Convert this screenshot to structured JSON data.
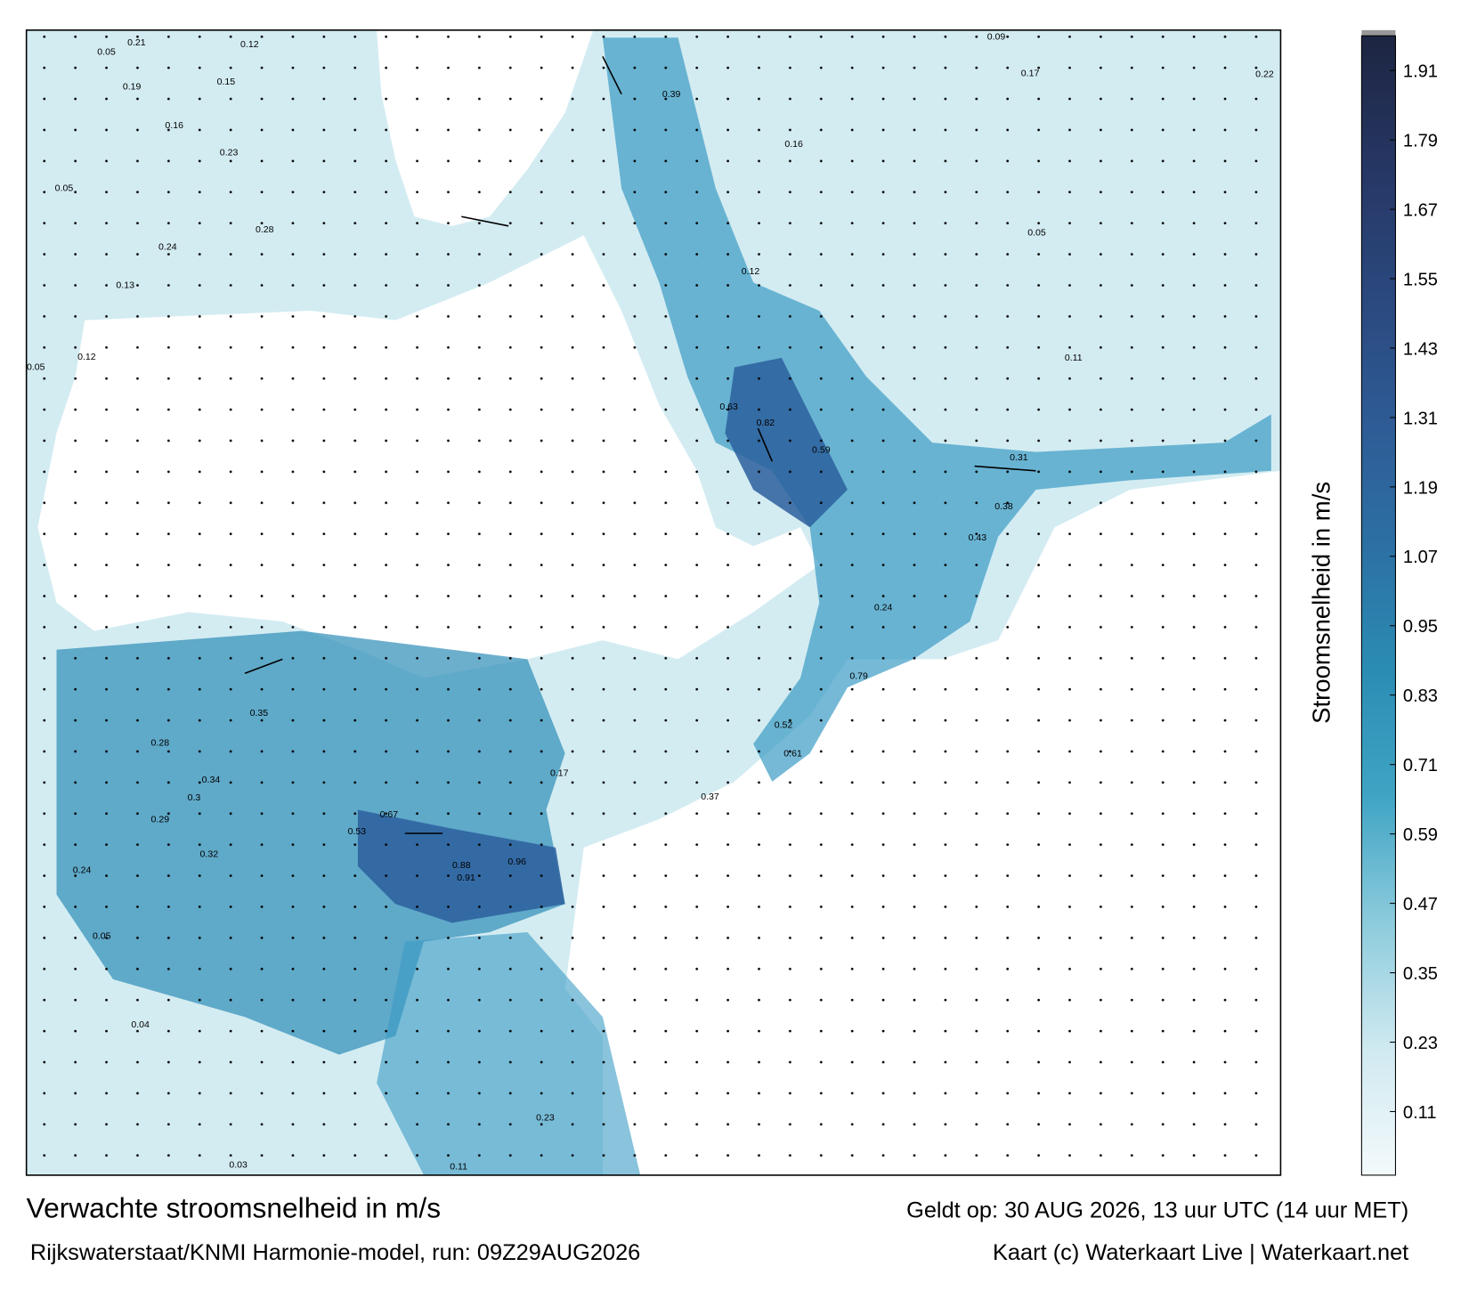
{
  "title": "Verwachte stroomsnelheid in m/s",
  "source": "Rijkswaterstaat/KNMI Harmonie-model, run: 09Z29AUG2026",
  "valid": "Geldt op: 30 AUG 2026, 13 uur UTC (14 uur MET)",
  "credit": "Kaart (c) Waterkaart Live | Waterkaart.net",
  "colorbar": {
    "label": "Stroomsnelheid in m/s",
    "lim": [
      0,
      1.97
    ],
    "ticks": [
      0.11,
      0.23,
      0.35,
      0.47,
      0.59,
      0.71,
      0.83,
      0.95,
      1.07,
      1.19,
      1.31,
      1.43,
      1.55,
      1.67,
      1.79,
      1.91
    ],
    "colors": [
      "#f4fafc",
      "#cfe9f0",
      "#8ccbdc",
      "#3fa4c4",
      "#2b8cb3",
      "#2c6fa3",
      "#2e5a94",
      "#2a477c",
      "#263663",
      "#1d2541"
    ]
  },
  "labels": [
    0.21,
    0.05,
    0.12,
    0.19,
    0.15,
    0.16,
    0.23,
    0.05,
    0.24,
    0.28,
    0.13,
    0.05,
    0.12,
    0.35,
    0.28,
    0.34,
    0.3,
    0.29,
    0.32,
    0.24,
    0.53,
    0.67,
    0.88,
    0.96,
    0.91,
    0.05,
    0.04,
    0.03,
    0.39,
    0.16,
    0.12,
    0.63,
    0.82,
    0.59,
    0.31,
    0.22,
    0.09,
    0.17,
    0.05,
    0.11,
    0.38,
    0.43,
    0.24,
    0.79,
    0.61,
    0.52,
    0.37,
    0.17,
    0.23,
    0.11
  ]
}
